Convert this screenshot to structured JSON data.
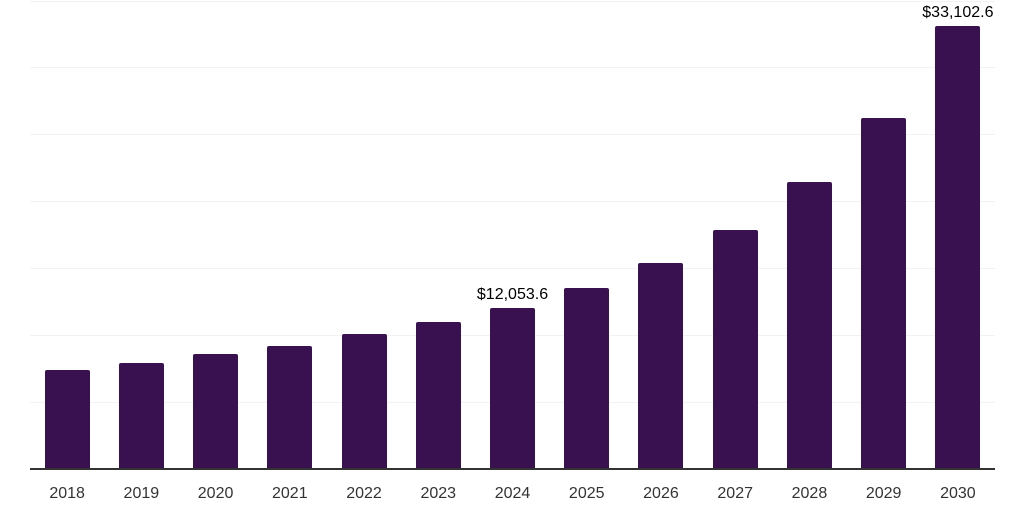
{
  "chart": {
    "background_color": "#ffffff",
    "bar_color": "#3a1150",
    "axis_color": "#333333",
    "gridline_color": "#f2f2f2",
    "tick_label_color": "#333333",
    "data_label_color": "#000000"
  },
  "chart_data": {
    "type": "bar",
    "title": "",
    "xlabel": "",
    "ylabel": "",
    "legend": "none",
    "grid": "horizontal",
    "y_axis_labels_visible": false,
    "ylim": [
      0,
      35000
    ],
    "gridline_step": 5000,
    "categories": [
      "2018",
      "2019",
      "2020",
      "2021",
      "2022",
      "2023",
      "2024",
      "2025",
      "2026",
      "2027",
      "2028",
      "2029",
      "2030"
    ],
    "values": [
      7400,
      7930,
      8600,
      9200,
      10100,
      11000,
      12053.6,
      13540,
      15400,
      17900,
      21460,
      26250,
      33102.6
    ],
    "values_note": "Only 2024 and 2030 are labeled in the image; other values estimated from bar heights vs gridlines",
    "data_labels": [
      {
        "category": "2024",
        "text": "$12,053.6"
      },
      {
        "category": "2030",
        "text": "$33,102.6"
      }
    ]
  }
}
